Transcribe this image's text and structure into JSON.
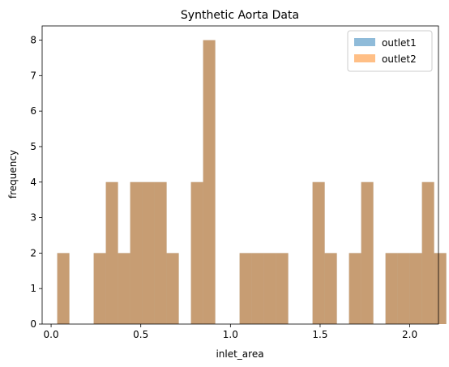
{
  "chart_data": {
    "type": "bar",
    "subtype": "histogram",
    "title": "Synthetic Aorta Data",
    "xlabel": "inlet_area",
    "ylabel": "frequency",
    "xlim": [
      -0.05,
      2.16
    ],
    "ylim": [
      0,
      8.4
    ],
    "xticks": [
      "0.0",
      "0.5",
      "1.0",
      "1.5",
      "2.0"
    ],
    "xtick_values": [
      0.0,
      0.5,
      1.0,
      1.5,
      2.0
    ],
    "yticks": [
      "0",
      "1",
      "2",
      "3",
      "4",
      "5",
      "6",
      "7",
      "8"
    ],
    "ytick_values": [
      0,
      1,
      2,
      3,
      4,
      5,
      6,
      7,
      8
    ],
    "grid": false,
    "legend_position": "top-right",
    "bin_start": 0.034,
    "bin_width": 0.0678,
    "series": [
      {
        "name": "outlet1",
        "color": "#1f77b4",
        "opacity": 0.5,
        "values": [
          2,
          0,
          0,
          2,
          4,
          2,
          4,
          4,
          4,
          2,
          0,
          4,
          8,
          0,
          0,
          2,
          2,
          2,
          2,
          0,
          0,
          4,
          2,
          0,
          2,
          4,
          0,
          2,
          2,
          2,
          4,
          2
        ]
      },
      {
        "name": "outlet2",
        "color": "#ff7f0e",
        "opacity": 0.5,
        "values": [
          2,
          0,
          0,
          2,
          4,
          2,
          4,
          4,
          4,
          2,
          0,
          4,
          8,
          0,
          0,
          2,
          2,
          2,
          2,
          0,
          0,
          4,
          2,
          0,
          2,
          4,
          0,
          2,
          2,
          2,
          4,
          2
        ]
      }
    ]
  }
}
